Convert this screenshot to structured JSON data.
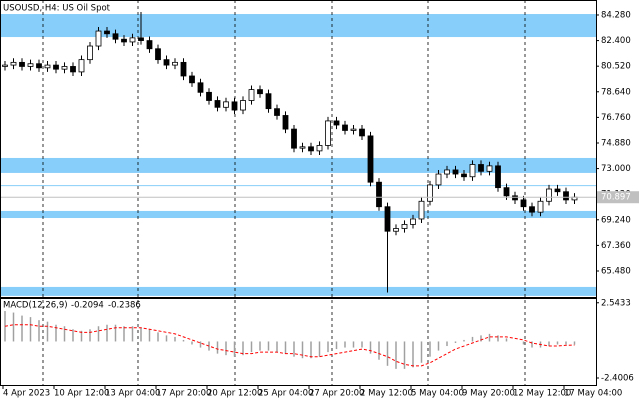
{
  "chart_data": [
    {
      "type": "candlestick",
      "title": "USOUSD, H4: US Oil Spot",
      "categories": [
        "4 Apr 2023",
        null,
        null,
        null,
        null,
        null,
        "10 Apr 12:00",
        null,
        null,
        null,
        null,
        null,
        "13 Apr 04:00",
        null,
        null,
        null,
        null,
        null,
        "17 Apr 20:00",
        null,
        null,
        null,
        null,
        null,
        "20 Apr 12:00",
        null,
        null,
        null,
        null,
        null,
        "25 Apr 04:00",
        null,
        null,
        null,
        null,
        null,
        "27 Apr 20:00",
        null,
        null,
        null,
        null,
        null,
        "2 May 12:00",
        null,
        null,
        null,
        null,
        null,
        "5 May 04:00",
        null,
        null,
        null,
        null,
        null,
        "9 May 20:00",
        null,
        null,
        null,
        null,
        null,
        "12 May 12:00",
        null,
        null,
        null,
        null,
        null,
        "17 May 04:00",
        null
      ],
      "open": [
        80.5,
        80.6,
        80.8,
        80.5,
        80.7,
        80.4,
        80.6,
        80.3,
        80.5,
        80.1,
        81.0,
        82.0,
        83.1,
        82.9,
        82.5,
        82.3,
        82.6,
        82.4,
        81.8,
        81.0,
        80.6,
        80.8,
        79.8,
        79.3,
        78.6,
        78.0,
        77.5,
        77.9,
        77.3,
        78.0,
        78.8,
        78.5,
        77.4,
        76.9,
        75.9,
        74.5,
        74.6,
        74.3,
        74.7,
        76.5,
        76.2,
        75.8,
        75.9,
        75.4,
        72.0,
        70.2,
        68.4,
        68.6,
        68.9,
        69.3,
        70.6,
        71.8,
        72.6,
        72.9,
        72.6,
        72.4,
        73.3,
        72.8,
        73.2,
        71.6,
        71.0,
        70.7,
        70.2,
        69.8,
        70.6,
        71.5,
        71.3,
        70.7
      ],
      "high": [
        80.9,
        81.1,
        81.1,
        81.0,
        81.0,
        80.9,
        80.9,
        80.8,
        80.8,
        81.3,
        82.3,
        83.4,
        83.4,
        83.2,
        82.8,
        82.9,
        84.5,
        82.7,
        82.1,
        81.3,
        81.1,
        81.1,
        80.1,
        79.6,
        78.9,
        78.3,
        78.2,
        78.2,
        78.3,
        79.1,
        79.1,
        78.8,
        77.7,
        77.2,
        76.2,
        74.9,
        74.9,
        75.0,
        76.8,
        76.8,
        76.5,
        76.2,
        76.2,
        75.7,
        72.3,
        70.5,
        68.9,
        69.2,
        69.6,
        70.9,
        72.1,
        72.9,
        73.2,
        73.2,
        72.9,
        73.6,
        73.6,
        73.5,
        73.5,
        71.9,
        71.3,
        71.0,
        70.5,
        70.9,
        71.8,
        71.8,
        71.6,
        71.2
      ],
      "low": [
        80.2,
        80.3,
        80.2,
        80.2,
        80.1,
        80.1,
        80.0,
        80.0,
        79.8,
        79.8,
        80.7,
        81.7,
        82.6,
        82.2,
        82.0,
        82.0,
        82.1,
        81.5,
        80.7,
        80.3,
        80.3,
        79.5,
        79.0,
        78.3,
        77.7,
        77.2,
        77.2,
        77.0,
        77.0,
        77.7,
        78.2,
        77.1,
        76.6,
        75.6,
        74.2,
        74.2,
        74.0,
        74.0,
        74.4,
        75.9,
        75.5,
        75.5,
        75.1,
        71.7,
        69.9,
        63.9,
        68.1,
        68.3,
        68.6,
        69.0,
        70.3,
        71.5,
        72.3,
        72.3,
        72.1,
        72.1,
        72.5,
        72.5,
        71.3,
        70.7,
        70.4,
        69.9,
        69.5,
        69.5,
        70.3,
        71.0,
        70.4,
        70.4
      ],
      "close": [
        80.6,
        80.8,
        80.5,
        80.7,
        80.4,
        80.6,
        80.3,
        80.5,
        80.1,
        81.0,
        82.0,
        83.1,
        82.9,
        82.5,
        82.3,
        82.6,
        82.4,
        81.8,
        81.0,
        80.6,
        80.8,
        79.8,
        79.3,
        78.6,
        78.0,
        77.5,
        77.9,
        77.3,
        78.0,
        78.8,
        78.5,
        77.4,
        76.9,
        75.9,
        74.5,
        74.6,
        74.3,
        74.7,
        76.5,
        76.2,
        75.8,
        75.9,
        75.4,
        72.0,
        70.2,
        68.4,
        68.6,
        68.9,
        69.3,
        70.6,
        71.8,
        72.6,
        72.9,
        72.6,
        72.4,
        73.3,
        72.8,
        73.2,
        71.6,
        71.0,
        70.7,
        70.2,
        69.8,
        70.6,
        71.5,
        71.3,
        70.7,
        70.897
      ],
      "up_color": "#ffffff",
      "down_color": "#000000",
      "zones": [
        [
          82.66,
          84.35
        ],
        [
          72.68,
          73.78
        ],
        [
          69.37,
          69.89
        ],
        [
          63.65,
          64.31
        ]
      ],
      "zone_color": "#87cefa",
      "level_lines": [
        71.75
      ],
      "ylim": [
        63.57,
        85.38
      ],
      "yticks": [
        {
          "value": 65.48,
          "label": "65.480"
        },
        {
          "value": 67.36,
          "label": "67.360"
        },
        {
          "value": 69.24,
          "label": "69.240"
        },
        {
          "value": 71.12,
          "label": "71.120"
        },
        {
          "value": 73,
          "label": "73.000"
        },
        {
          "value": 74.88,
          "label": "74.880"
        },
        {
          "value": 76.76,
          "label": "76.760"
        },
        {
          "value": 78.64,
          "label": "78.640"
        },
        {
          "value": 80.52,
          "label": "80.520"
        },
        {
          "value": 82.4,
          "label": "82.400"
        },
        {
          "value": 84.28,
          "label": "84.280"
        }
      ]
    },
    {
      "type": "macd",
      "label": "MACD(12,26,9)",
      "series": [
        {
          "style": "histogram",
          "color": "#a0a0a0",
          "values": [
            2.0,
            1.9,
            1.7,
            1.6,
            1.4,
            1.3,
            1.1,
            1.0,
            0.8,
            0.7,
            0.8,
            1.0,
            1.1,
            1.1,
            1.0,
            1.0,
            0.9,
            0.8,
            0.6,
            0.4,
            0.3,
            0.1,
            -0.2,
            -0.4,
            -0.6,
            -0.8,
            -0.9,
            -1.0,
            -0.9,
            -0.7,
            -0.6,
            -0.6,
            -0.7,
            -0.8,
            -1.0,
            -1.1,
            -1.1,
            -1.0,
            -0.7,
            -0.5,
            -0.4,
            -0.4,
            -0.4,
            -0.8,
            -1.2,
            -1.6,
            -1.8,
            -1.8,
            -1.7,
            -1.4,
            -1.0,
            -0.6,
            -0.3,
            -0.1,
            0.1,
            0.3,
            0.4,
            0.5,
            0.4,
            0.2,
            0.0,
            -0.2,
            -0.4,
            -0.4,
            -0.3,
            -0.2,
            -0.2,
            -0.2094
          ]
        },
        {
          "style": "dashed-line",
          "color": "#ff0000",
          "values": [
            1.0,
            1.1,
            1.1,
            1.1,
            1.0,
            1.0,
            0.9,
            0.8,
            0.7,
            0.6,
            0.6,
            0.7,
            0.8,
            0.9,
            0.9,
            0.9,
            0.9,
            0.8,
            0.7,
            0.6,
            0.5,
            0.3,
            0.1,
            -0.1,
            -0.3,
            -0.5,
            -0.6,
            -0.7,
            -0.8,
            -0.8,
            -0.7,
            -0.7,
            -0.7,
            -0.8,
            -0.8,
            -0.9,
            -1.0,
            -1.0,
            -0.9,
            -0.8,
            -0.7,
            -0.6,
            -0.5,
            -0.6,
            -0.8,
            -1.0,
            -1.3,
            -1.5,
            -1.6,
            -1.6,
            -1.4,
            -1.1,
            -0.8,
            -0.5,
            -0.3,
            -0.1,
            0.1,
            0.3,
            0.3,
            0.3,
            0.2,
            0.1,
            -0.1,
            -0.2,
            -0.3,
            -0.3,
            -0.25,
            -0.2386
          ]
        }
      ],
      "ylim": [
        -2.86,
        2.79
      ],
      "yticks": [
        -2.4006,
        2.5433
      ]
    }
  ]
}
